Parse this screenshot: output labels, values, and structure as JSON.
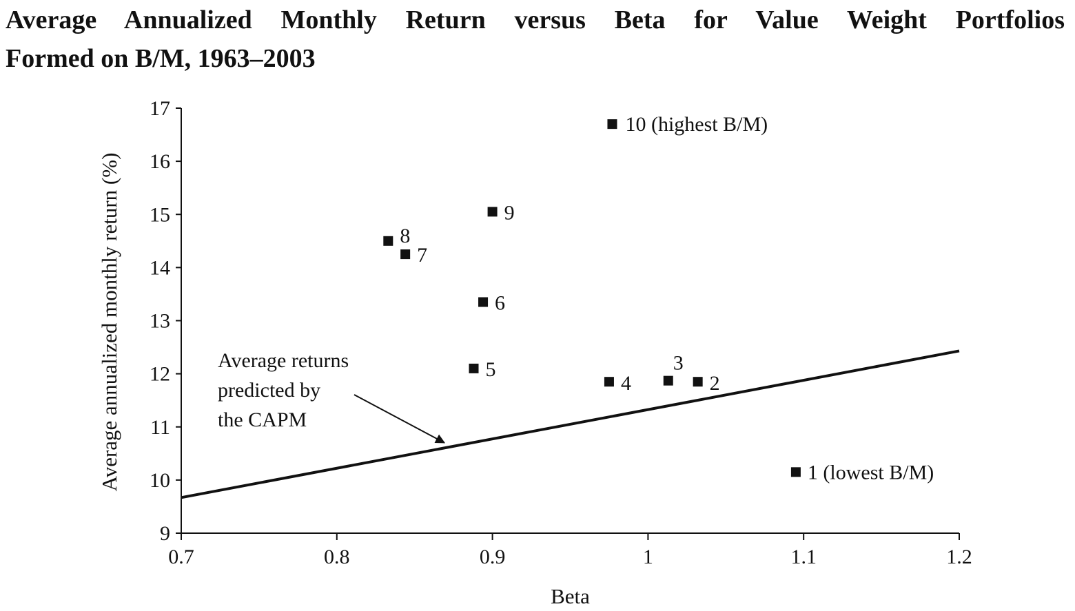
{
  "title_line1": "Average Annualized Monthly Return versus Beta for Value Weight Portfolios",
  "title_line2": "Formed on B/M, 1963–2003",
  "chart_data": {
    "type": "scatter",
    "title": "Average Annualized Monthly Return versus Beta for Value Weight Portfolios Formed on B/M, 1963–2003",
    "xlabel": "Beta",
    "ylabel": "Average annualized monthly return (%)",
    "xlim": [
      0.7,
      1.2
    ],
    "ylim": [
      9,
      17
    ],
    "x_ticks": [
      0.7,
      0.8,
      0.9,
      1,
      1.1,
      1.2
    ],
    "x_tick_labels": [
      "0.7",
      "0.8",
      "0.9",
      "1",
      "1.1",
      "1.2"
    ],
    "y_ticks": [
      9,
      10,
      11,
      12,
      13,
      14,
      15,
      16,
      17
    ],
    "y_tick_labels": [
      "9",
      "10",
      "11",
      "12",
      "13",
      "14",
      "15",
      "16",
      "17"
    ],
    "grid": false,
    "points": [
      {
        "label": "1 (lowest B/M)",
        "x": 1.095,
        "y": 10.15
      },
      {
        "label": "2",
        "x": 1.032,
        "y": 11.85
      },
      {
        "label": "3",
        "x": 1.013,
        "y": 11.87
      },
      {
        "label": "4",
        "x": 0.975,
        "y": 11.85
      },
      {
        "label": "5",
        "x": 0.888,
        "y": 12.1
      },
      {
        "label": "6",
        "x": 0.894,
        "y": 13.35
      },
      {
        "label": "7",
        "x": 0.844,
        "y": 14.25
      },
      {
        "label": "8",
        "x": 0.833,
        "y": 14.5
      },
      {
        "label": "9",
        "x": 0.9,
        "y": 15.05
      },
      {
        "label": "10 (highest B/M)",
        "x": 0.977,
        "y": 16.7
      }
    ],
    "capm_line": {
      "x": [
        0.7,
        1.2
      ],
      "y": [
        9.67,
        12.43
      ]
    },
    "annotation": {
      "lines": [
        "Average returns",
        "predicted by",
        "the CAPM"
      ],
      "arrow_target": {
        "x": 0.87,
        "y": 10.65
      }
    }
  }
}
